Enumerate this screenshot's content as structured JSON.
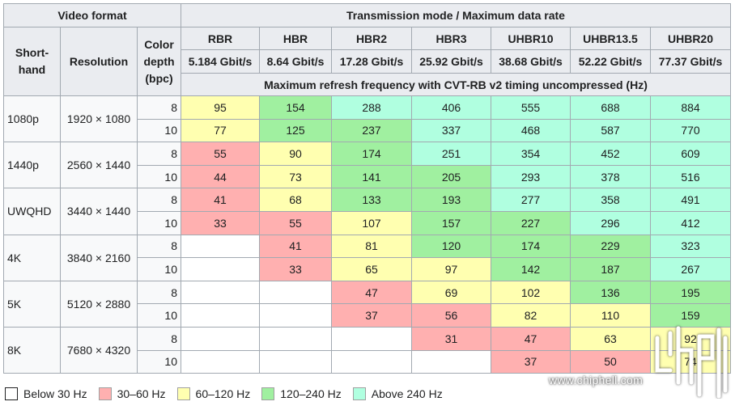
{
  "header": {
    "video_format": "Video format",
    "transmission": "Transmission mode / Maximum data rate",
    "shorthand": "Short-\nhand",
    "resolution": "Resolution",
    "color_depth": "Color depth (bpc)",
    "subheader": "Maximum refresh frequency with CVT-RB v2 timing uncompressed (Hz)",
    "modes": [
      {
        "name": "RBR",
        "rate": "5.184 Gbit/s"
      },
      {
        "name": "HBR",
        "rate": "8.64 Gbit/s"
      },
      {
        "name": "HBR2",
        "rate": "17.28 Gbit/s"
      },
      {
        "name": "HBR3",
        "rate": "25.92 Gbit/s"
      },
      {
        "name": "UHBR10",
        "rate": "38.68 Gbit/s"
      },
      {
        "name": "UHBR13.5",
        "rate": "52.22 Gbit/s"
      },
      {
        "name": "UHBR20",
        "rate": "77.37 Gbit/s"
      }
    ]
  },
  "colors": {
    "below30": "#ffffff",
    "30to60": "#ffb0b0",
    "60to120": "#ffffb0",
    "120to240": "#a0f0a0",
    "above240": "#b0ffe0"
  },
  "formats": [
    {
      "shorthand": "1080p",
      "resolution": "1920 × 1080",
      "rows": [
        {
          "depth": "8",
          "values": [
            "95",
            "154",
            "288",
            "406",
            "555",
            "688",
            "884"
          ],
          "classes": [
            2,
            3,
            4,
            4,
            4,
            4,
            4
          ]
        },
        {
          "depth": "10",
          "values": [
            "77",
            "125",
            "237",
            "337",
            "468",
            "587",
            "770"
          ],
          "classes": [
            2,
            3,
            3,
            4,
            4,
            4,
            4
          ]
        }
      ]
    },
    {
      "shorthand": "1440p",
      "resolution": "2560 × 1440",
      "rows": [
        {
          "depth": "8",
          "values": [
            "55",
            "90",
            "174",
            "251",
            "354",
            "452",
            "609"
          ],
          "classes": [
            1,
            2,
            3,
            4,
            4,
            4,
            4
          ]
        },
        {
          "depth": "10",
          "values": [
            "44",
            "73",
            "141",
            "205",
            "293",
            "378",
            "516"
          ],
          "classes": [
            1,
            2,
            3,
            3,
            4,
            4,
            4
          ]
        }
      ]
    },
    {
      "shorthand": "UWQHD",
      "resolution": "3440 × 1440",
      "rows": [
        {
          "depth": "8",
          "values": [
            "41",
            "68",
            "133",
            "193",
            "277",
            "358",
            "491"
          ],
          "classes": [
            1,
            2,
            3,
            3,
            4,
            4,
            4
          ]
        },
        {
          "depth": "10",
          "values": [
            "33",
            "55",
            "107",
            "157",
            "227",
            "296",
            "412"
          ],
          "classes": [
            1,
            1,
            2,
            3,
            3,
            4,
            4
          ]
        }
      ]
    },
    {
      "shorthand": "4K",
      "resolution": "3840 × 2160",
      "rows": [
        {
          "depth": "8",
          "values": [
            "",
            "41",
            "81",
            "120",
            "174",
            "229",
            "323"
          ],
          "classes": [
            0,
            1,
            2,
            3,
            3,
            3,
            4
          ]
        },
        {
          "depth": "10",
          "values": [
            "",
            "33",
            "65",
            "97",
            "142",
            "187",
            "267"
          ],
          "classes": [
            0,
            1,
            2,
            2,
            3,
            3,
            4
          ]
        }
      ]
    },
    {
      "shorthand": "5K",
      "resolution": "5120 × 2880",
      "rows": [
        {
          "depth": "8",
          "values": [
            "",
            "",
            "47",
            "69",
            "102",
            "136",
            "195"
          ],
          "classes": [
            0,
            0,
            1,
            2,
            2,
            3,
            3
          ]
        },
        {
          "depth": "10",
          "values": [
            "",
            "",
            "37",
            "56",
            "82",
            "110",
            "159"
          ],
          "classes": [
            0,
            0,
            1,
            1,
            2,
            2,
            3
          ]
        }
      ]
    },
    {
      "shorthand": "8K",
      "resolution": "7680 × 4320",
      "rows": [
        {
          "depth": "8",
          "values": [
            "",
            "",
            "",
            "31",
            "47",
            "63",
            "92"
          ],
          "classes": [
            0,
            0,
            0,
            1,
            1,
            2,
            2
          ]
        },
        {
          "depth": "10",
          "values": [
            "",
            "",
            "",
            "",
            "37",
            "50",
            "74"
          ],
          "classes": [
            0,
            0,
            0,
            0,
            1,
            1,
            2
          ]
        }
      ]
    }
  ],
  "legend": [
    {
      "label": "Below 30 Hz",
      "cls": 0
    },
    {
      "label": "30–60 Hz",
      "cls": 1
    },
    {
      "label": "60–120 Hz",
      "cls": 2
    },
    {
      "label": "120–240 Hz",
      "cls": 3
    },
    {
      "label": "Above 240 Hz",
      "cls": 4
    }
  ],
  "watermark": {
    "site": "www.chiphell.com",
    "logo": "chiphell-logo"
  }
}
